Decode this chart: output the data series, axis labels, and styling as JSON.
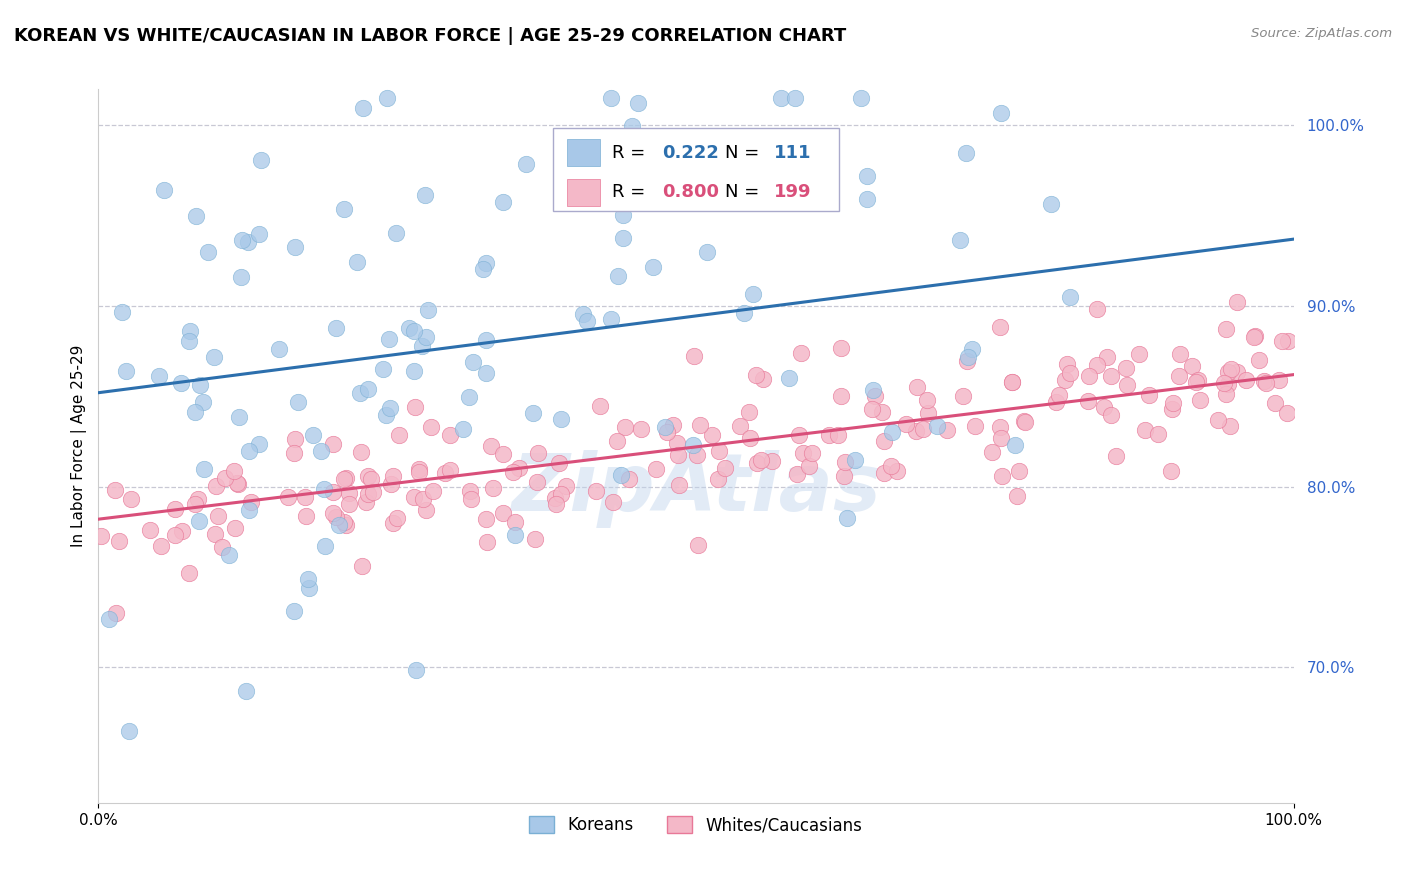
{
  "title": "KOREAN VS WHITE/CAUCASIAN IN LABOR FORCE | AGE 25-29 CORRELATION CHART",
  "source": "Source: ZipAtlas.com",
  "ylabel": "In Labor Force | Age 25-29",
  "xlim": [
    0.0,
    1.0
  ],
  "ylim": [
    0.625,
    1.02
  ],
  "xticks": [
    0.0,
    1.0
  ],
  "xticklabels": [
    "0.0%",
    "100.0%"
  ],
  "yticks_right": [
    0.7,
    0.8,
    0.9,
    1.0
  ],
  "yticks_right_labels": [
    "70.0%",
    "80.0%",
    "90.0%",
    "100.0%"
  ],
  "korean_R": 0.222,
  "korean_N": 111,
  "white_R": 0.8,
  "white_N": 199,
  "blue_color": "#a8c8e8",
  "blue_edge_color": "#7aafd4",
  "pink_color": "#f4b8c8",
  "pink_edge_color": "#e87898",
  "blue_line_color": "#2c6fad",
  "pink_line_color": "#d94f7a",
  "legend_blue_label": "Koreans",
  "legend_pink_label": "Whites/Caucasians",
  "watermark": "ZipAtlas",
  "background_color": "#ffffff",
  "grid_color": "#c8c8d4",
  "title_fontsize": 13,
  "label_fontsize": 11,
  "tick_fontsize": 11,
  "korean_trend_x0": 0.0,
  "korean_trend_y0": 0.852,
  "korean_trend_x1": 1.0,
  "korean_trend_y1": 0.937,
  "white_trend_x0": 0.0,
  "white_trend_y0": 0.782,
  "white_trend_x1": 1.0,
  "white_trend_y1": 0.862
}
